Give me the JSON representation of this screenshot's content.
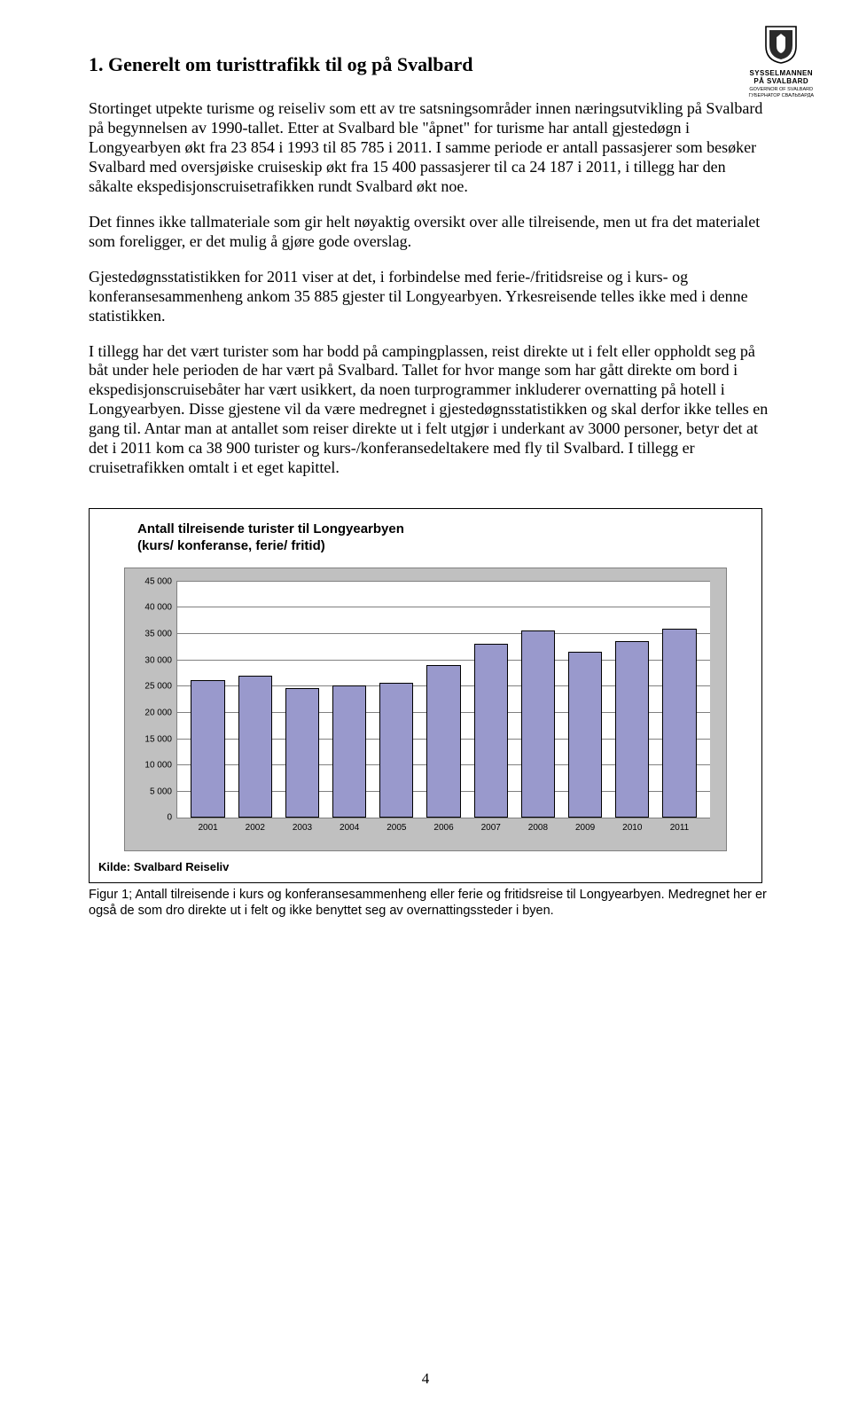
{
  "logo": {
    "title": "SYSSELMANNEN\nPÅ SVALBARD",
    "sub1": "GOVERNOR OF SVALBARD",
    "sub2": "ГУБЕРНАТОР СВАЛЬБАРДА",
    "shield_border": "#000000",
    "shield_fill": "#ffffff",
    "shield_inner": "#2a2a2a"
  },
  "heading": "1.  Generelt om turisttrafikk til og på Svalbard",
  "paragraphs": {
    "p1": "Stortinget utpekte turisme og reiseliv som ett av tre satsningsområder innen næringsutvikling på Svalbard på begynnelsen av 1990-tallet.",
    "p2": "Etter at Svalbard ble \"åpnet\" for turisme har antall gjestedøgn i Longyearbyen økt fra 23 854 i 1993 til 85 785 i 2011. I samme periode er antall passasjerer som besøker Svalbard med oversjøiske cruiseskip økt fra 15 400 passasjerer til ca 24 187 i 2011, i tillegg har den såkalte ekspedisjonscruisetrafikken rundt Svalbard økt noe.",
    "p3": "Det finnes ikke tallmateriale som gir helt nøyaktig oversikt over alle tilreisende, men ut fra det materialet som foreligger, er det mulig å gjøre gode overslag.",
    "p4": "Gjestedøgnsstatistikken for 2011 viser at det, i forbindelse med ferie-/fritidsreise og i kurs- og konferansesammenheng ankom 35 885 gjester til Longyearbyen. Yrkesreisende telles ikke med i denne statistikken.",
    "p5": "I tillegg har det vært turister som har bodd på campingplassen, reist direkte ut i felt eller oppholdt seg på båt under hele perioden de har vært på Svalbard. Tallet for hvor mange som har gått direkte om bord i ekspedisjonscruisebåter har vært usikkert, da noen turprogrammer inkluderer overnatting på hotell i Longyearbyen. Disse gjestene vil da være medregnet i gjestedøgnsstatistikken og skal derfor ikke telles en gang til. Antar man at antallet som reiser direkte ut i felt utgjør i underkant av 3000 personer, betyr det at det i 2011 kom ca 38 900 turister og kurs-/konferansedeltakere med fly til Svalbard. I tillegg er cruisetrafikken omtalt i et eget kapittel."
  },
  "chart": {
    "type": "bar",
    "title_line1": "Antall tilreisende turister til Longyearbyen",
    "title_line2": "(kurs/ konferanse, ferie/ fritid)",
    "title_fontsize": 15,
    "categories": [
      "2001",
      "2002",
      "2003",
      "2004",
      "2005",
      "2006",
      "2007",
      "2008",
      "2009",
      "2010",
      "2011"
    ],
    "values": [
      26000,
      27000,
      24500,
      25000,
      25500,
      29000,
      33000,
      35500,
      31500,
      33500,
      35800
    ],
    "bar_color": "#9999cc",
    "bar_border": "#000000",
    "background_color": "#c0c0c0",
    "plot_background": "#ffffff",
    "grid_color": "#808080",
    "ymin": 0,
    "ymax": 45000,
    "ytick_step": 5000,
    "yticks": [
      "0",
      "5 000",
      "10 000",
      "15 000",
      "20 000",
      "25 000",
      "30 000",
      "35 000",
      "40 000",
      "45 000"
    ],
    "label_fontsize": 10,
    "source": "Kilde: Svalbard Reiseliv"
  },
  "caption": "Figur 1; Antall tilreisende i kurs og konferansesammenheng eller ferie og fritidsreise til Longyearbyen. Medregnet her er også de som dro direkte ut i felt og ikke benyttet seg av overnattingssteder i byen.",
  "page_number": "4"
}
